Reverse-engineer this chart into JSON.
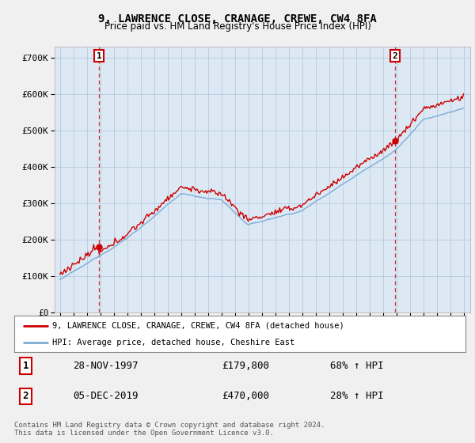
{
  "title_line1": "9, LAWRENCE CLOSE, CRANAGE, CREWE, CW4 8FA",
  "title_line2": "Price paid vs. HM Land Registry's House Price Index (HPI)",
  "background_color": "#f0f0f0",
  "plot_background_color": "#dde8f5",
  "ylim": [
    0,
    730000
  ],
  "yticks": [
    0,
    100000,
    200000,
    300000,
    400000,
    500000,
    600000,
    700000
  ],
  "ytick_labels": [
    "£0",
    "£100K",
    "£200K",
    "£300K",
    "£400K",
    "£500K",
    "£600K",
    "£700K"
  ],
  "sale1_date_num": 1997.91,
  "sale1_price": 179800,
  "sale2_date_num": 2019.92,
  "sale2_price": 470000,
  "sale1_date_str": "28-NOV-1997",
  "sale1_price_str": "£179,800",
  "sale1_hpi_str": "68% ↑ HPI",
  "sale2_date_str": "05-DEC-2019",
  "sale2_price_str": "£470,000",
  "sale2_hpi_str": "28% ↑ HPI",
  "house_color": "#cc0000",
  "hpi_color": "#7aadd4",
  "legend_house_label": "9, LAWRENCE CLOSE, CRANAGE, CREWE, CW4 8FA (detached house)",
  "legend_hpi_label": "HPI: Average price, detached house, Cheshire East",
  "footer_line1": "Contains HM Land Registry data © Crown copyright and database right 2024.",
  "footer_line2": "This data is licensed under the Open Government Licence v3.0."
}
